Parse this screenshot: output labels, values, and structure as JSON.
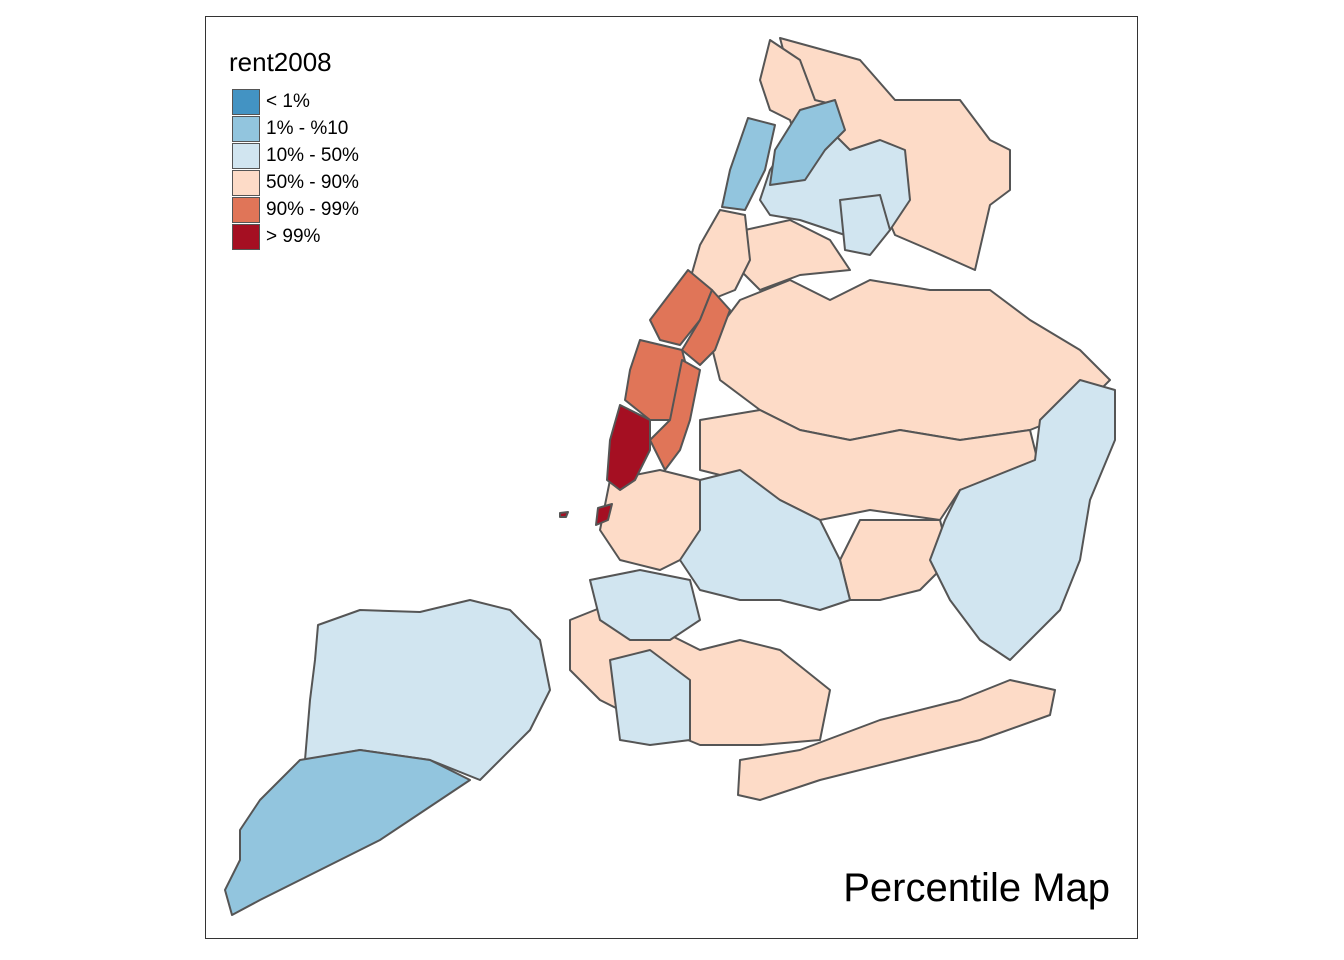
{
  "legend": {
    "title": "rent2008",
    "items": [
      {
        "label": "< 1%",
        "color": "#4393c3"
      },
      {
        "label": "1% - %10",
        "color": "#92c5de"
      },
      {
        "label": "10% - 50%",
        "color": "#d1e5f0"
      },
      {
        "label": "50% - 90%",
        "color": "#fddbc7"
      },
      {
        "label": "90% - 99%",
        "color": "#e07558"
      },
      {
        "label": "> 99%",
        "color": "#a50f22"
      }
    ]
  },
  "map_title": "Percentile Map",
  "colors": {
    "border": "#555555",
    "frame": "#333333"
  }
}
